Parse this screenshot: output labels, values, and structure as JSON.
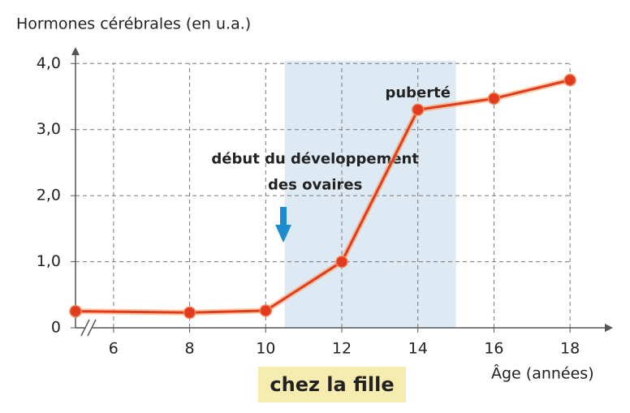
{
  "chart_data": {
    "type": "line",
    "title": "Hormones cérébrales (en u.a.)",
    "x_label": "Âge (années)",
    "caption": "chez la fille",
    "x": [
      5,
      8,
      10,
      12,
      14,
      16,
      18
    ],
    "series": [
      {
        "color": "#e23a1e",
        "values": [
          0.25,
          0.23,
          0.26,
          1.0,
          3.3,
          3.47,
          3.75
        ]
      }
    ],
    "xlim": [
      5,
      19
    ],
    "ylim": [
      0,
      4.2
    ],
    "xticks": [
      6,
      8,
      10,
      12,
      14,
      16,
      18
    ],
    "yticks": [
      0,
      {
        "value": 1,
        "label": "1,0"
      },
      {
        "value": 2,
        "label": "2,0"
      },
      {
        "value": 3,
        "label": "3,0"
      },
      {
        "value": 4,
        "label": "4,0"
      }
    ],
    "grid": true,
    "shaded_span": [
      10.5,
      15
    ],
    "annotations": [
      {
        "text": "puberté",
        "x": 14,
        "y": 3.55
      },
      {
        "lines": [
          "début du développement",
          "des ovaires"
        ],
        "x": 11.3,
        "y": 2.55
      }
    ]
  }
}
